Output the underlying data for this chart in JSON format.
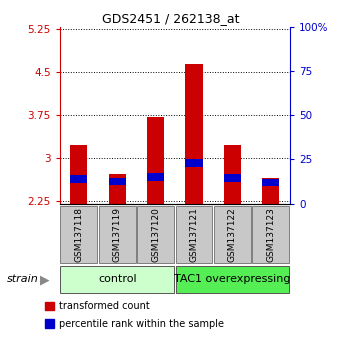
{
  "title": "GDS2451 / 262138_at",
  "samples": [
    "GSM137118",
    "GSM137119",
    "GSM137120",
    "GSM137121",
    "GSM137122",
    "GSM137123"
  ],
  "bar_bottom": 2.2,
  "red_tops": [
    3.22,
    2.72,
    3.72,
    4.65,
    3.22,
    2.65
  ],
  "blue_bottoms": [
    2.56,
    2.52,
    2.6,
    2.84,
    2.58,
    2.5
  ],
  "blue_tops": [
    2.7,
    2.65,
    2.74,
    2.98,
    2.72,
    2.63
  ],
  "ylim": [
    2.2,
    5.3
  ],
  "yticks_left": [
    2.25,
    3.0,
    3.75,
    4.5,
    5.25
  ],
  "ytick_labels_left": [
    "2.25",
    "3",
    "3.75",
    "4.5",
    "5.25"
  ],
  "yticks_right_pct": [
    0,
    25,
    50,
    75,
    100
  ],
  "ytick_labels_right": [
    "0",
    "25",
    "50",
    "75",
    "100%"
  ],
  "left_axis_color": "#cc0000",
  "right_axis_color": "#0000cc",
  "bar_width": 0.45,
  "control_color": "#ccffcc",
  "tac1_color": "#55ee55",
  "label_bg": "#c8c8c8"
}
